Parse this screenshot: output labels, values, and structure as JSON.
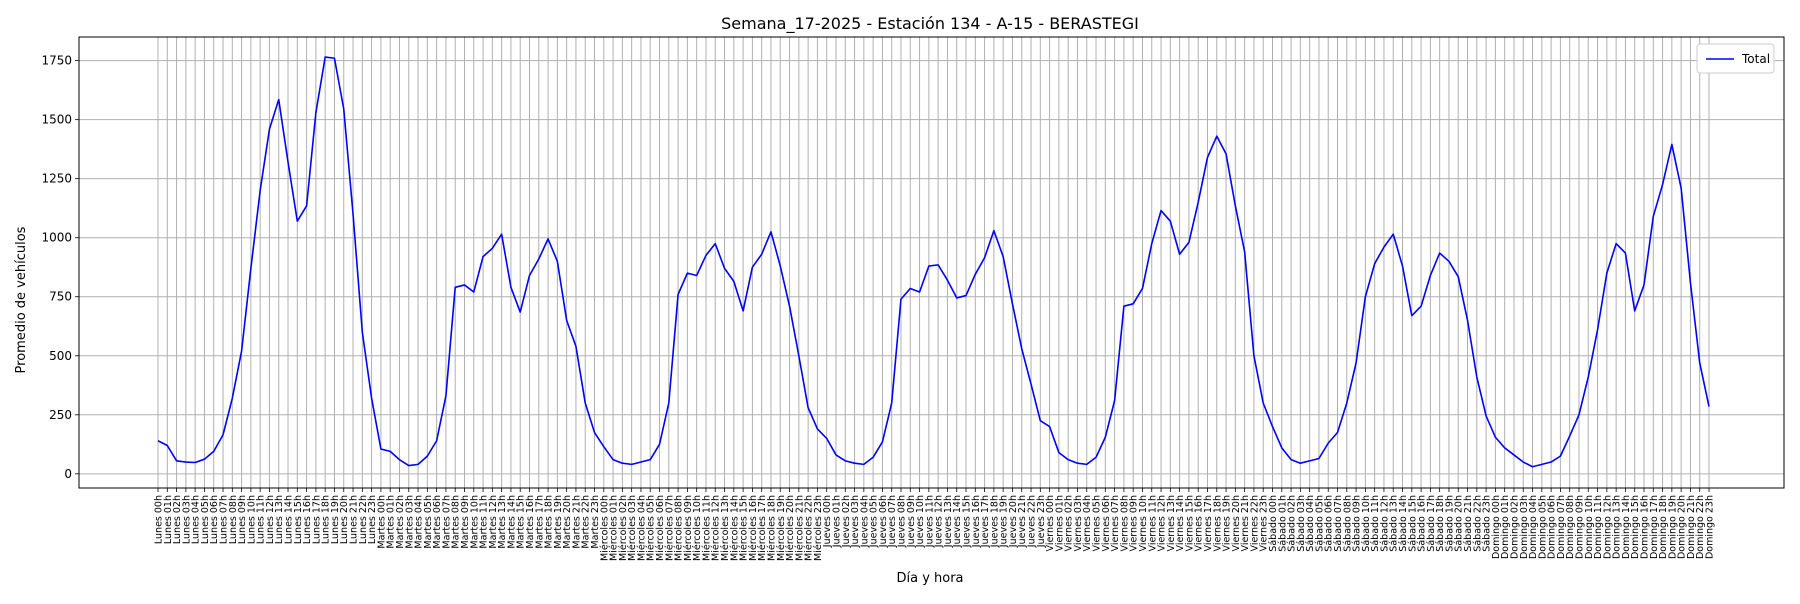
{
  "chart_data": {
    "type": "line",
    "title": "Semana_17-2025 - Estación 134 - A-15  - BERASTEGI",
    "xlabel": "Día y hora",
    "ylabel": "Promedio de vehículos",
    "ylim": [
      -60,
      1850
    ],
    "yticks": [
      0,
      250,
      500,
      750,
      1000,
      1250,
      1500,
      1750
    ],
    "grid": true,
    "legend_position": "top-right",
    "days": [
      "Lunes",
      "Martes",
      "Miércoles",
      "Jueves",
      "Viernes",
      "Sábado",
      "Domingo"
    ],
    "hours_per_day": 24,
    "categories": [
      "Lunes 00h",
      "Lunes 01h",
      "Lunes 02h",
      "Lunes 03h",
      "Lunes 04h",
      "Lunes 05h",
      "Lunes 06h",
      "Lunes 07h",
      "Lunes 08h",
      "Lunes 09h",
      "Lunes 10h",
      "Lunes 11h",
      "Lunes 12h",
      "Lunes 13h",
      "Lunes 14h",
      "Lunes 15h",
      "Lunes 16h",
      "Lunes 17h",
      "Lunes 18h",
      "Lunes 19h",
      "Lunes 20h",
      "Lunes 21h",
      "Lunes 22h",
      "Lunes 23h",
      "Martes 00h",
      "Martes 01h",
      "Martes 02h",
      "Martes 03h",
      "Martes 04h",
      "Martes 05h",
      "Martes 06h",
      "Martes 07h",
      "Martes 08h",
      "Martes 09h",
      "Martes 10h",
      "Martes 11h",
      "Martes 12h",
      "Martes 13h",
      "Martes 14h",
      "Martes 15h",
      "Martes 16h",
      "Martes 17h",
      "Martes 18h",
      "Martes 19h",
      "Martes 20h",
      "Martes 21h",
      "Martes 22h",
      "Martes 23h",
      "Miércoles 00h",
      "Miércoles 01h",
      "Miércoles 02h",
      "Miércoles 03h",
      "Miércoles 04h",
      "Miércoles 05h",
      "Miércoles 06h",
      "Miércoles 07h",
      "Miércoles 08h",
      "Miércoles 09h",
      "Miércoles 10h",
      "Miércoles 11h",
      "Miércoles 12h",
      "Miércoles 13h",
      "Miércoles 14h",
      "Miércoles 15h",
      "Miércoles 16h",
      "Miércoles 17h",
      "Miércoles 18h",
      "Miércoles 19h",
      "Miércoles 20h",
      "Miércoles 21h",
      "Miércoles 22h",
      "Miércoles 23h",
      "Jueves 00h",
      "Jueves 01h",
      "Jueves 02h",
      "Jueves 03h",
      "Jueves 04h",
      "Jueves 05h",
      "Jueves 06h",
      "Jueves 07h",
      "Jueves 08h",
      "Jueves 09h",
      "Jueves 10h",
      "Jueves 11h",
      "Jueves 12h",
      "Jueves 13h",
      "Jueves 14h",
      "Jueves 15h",
      "Jueves 16h",
      "Jueves 17h",
      "Jueves 18h",
      "Jueves 19h",
      "Jueves 20h",
      "Jueves 21h",
      "Jueves 22h",
      "Jueves 23h",
      "Viernes 00h",
      "Viernes 01h",
      "Viernes 02h",
      "Viernes 03h",
      "Viernes 04h",
      "Viernes 05h",
      "Viernes 06h",
      "Viernes 07h",
      "Viernes 08h",
      "Viernes 09h",
      "Viernes 10h",
      "Viernes 11h",
      "Viernes 12h",
      "Viernes 13h",
      "Viernes 14h",
      "Viernes 15h",
      "Viernes 16h",
      "Viernes 17h",
      "Viernes 18h",
      "Viernes 19h",
      "Viernes 20h",
      "Viernes 21h",
      "Viernes 22h",
      "Viernes 23h",
      "Sábado 00h",
      "Sábado 01h",
      "Sábado 02h",
      "Sábado 03h",
      "Sábado 04h",
      "Sábado 05h",
      "Sábado 06h",
      "Sábado 07h",
      "Sábado 08h",
      "Sábado 09h",
      "Sábado 10h",
      "Sábado 11h",
      "Sábado 12h",
      "Sábado 13h",
      "Sábado 14h",
      "Sábado 15h",
      "Sábado 16h",
      "Sábado 17h",
      "Sábado 18h",
      "Sábado 19h",
      "Sábado 20h",
      "Sábado 21h",
      "Sábado 22h",
      "Sábado 23h",
      "Domingo 00h",
      "Domingo 01h",
      "Domingo 02h",
      "Domingo 03h",
      "Domingo 04h",
      "Domingo 05h",
      "Domingo 06h",
      "Domingo 07h",
      "Domingo 08h",
      "Domingo 09h",
      "Domingo 10h",
      "Domingo 11h",
      "Domingo 12h",
      "Domingo 13h",
      "Domingo 14h",
      "Domingo 15h",
      "Domingo 16h",
      "Domingo 17h",
      "Domingo 18h",
      "Domingo 19h",
      "Domingo 20h",
      "Domingo 21h",
      "Domingo 22h",
      "Domingo 23h"
    ],
    "series": [
      {
        "name": "Total",
        "color": "#0000ff",
        "values": [
          140,
          120,
          55,
          50,
          48,
          62,
          95,
          165,
          320,
          520,
          870,
          1200,
          1460,
          1585,
          1320,
          1070,
          1135,
          1530,
          1765,
          1760,
          1545,
          1100,
          600,
          320,
          105,
          95,
          60,
          35,
          40,
          75,
          140,
          330,
          790,
          800,
          770,
          920,
          955,
          1015,
          790,
          685,
          840,
          910,
          995,
          900,
          650,
          540,
          300,
          175,
          115,
          60,
          45,
          40,
          50,
          60,
          125,
          300,
          760,
          850,
          840,
          925,
          975,
          870,
          815,
          690,
          875,
          930,
          1025,
          880,
          710,
          500,
          280,
          190,
          150,
          80,
          55,
          45,
          40,
          70,
          135,
          300,
          740,
          785,
          770,
          880,
          885,
          820,
          745,
          755,
          845,
          915,
          1030,
          920,
          720,
          530,
          380,
          225,
          200,
          90,
          60,
          45,
          40,
          70,
          155,
          310,
          710,
          720,
          785,
          975,
          1115,
          1070,
          930,
          980,
          1150,
          1340,
          1430,
          1355,
          1135,
          940,
          500,
          300,
          200,
          110,
          60,
          45,
          55,
          65,
          130,
          175,
          300,
          470,
          750,
          890,
          960,
          1015,
          880,
          670,
          710,
          840,
          935,
          900,
          835,
          650,
          410,
          245,
          155,
          110,
          80,
          50,
          30,
          40,
          50,
          75,
          160,
          250,
          410,
          610,
          850,
          975,
          935,
          690,
          800,
          1090,
          1225,
          1395,
          1210,
          810,
          470,
          285
        ]
      }
    ]
  }
}
